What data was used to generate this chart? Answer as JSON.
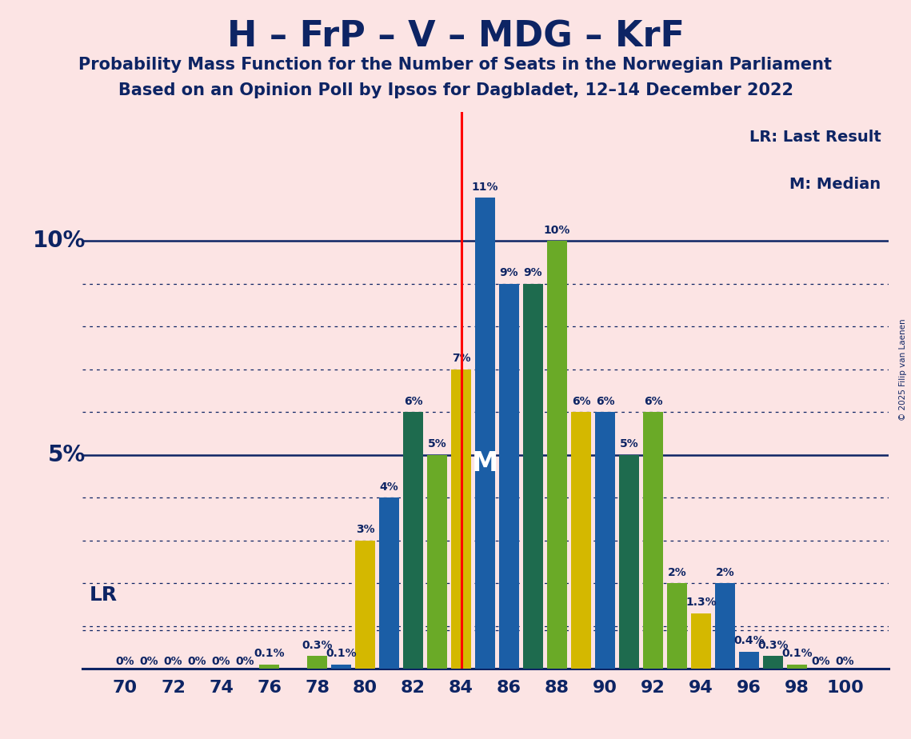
{
  "title": "H – FrP – V – MDG – KrF",
  "subtitle1": "Probability Mass Function for the Number of Seats in the Norwegian Parliament",
  "subtitle2": "Based on an Opinion Poll by Ipsos for Dagbladet, 12–14 December 2022",
  "copyright": "© 2025 Filip van Laenen",
  "background_color": "#fce4e4",
  "title_color": "#0d2464",
  "seats": [
    70,
    71,
    72,
    73,
    74,
    75,
    76,
    77,
    78,
    79,
    80,
    81,
    82,
    83,
    84,
    85,
    86,
    87,
    88,
    89,
    90,
    91,
    92,
    93,
    94,
    95,
    96,
    97,
    98,
    99,
    100
  ],
  "values": [
    0.0,
    0.0,
    0.0,
    0.0,
    0.0,
    0.0,
    0.1,
    0.0,
    0.3,
    0.1,
    3.0,
    4.0,
    6.0,
    5.0,
    7.0,
    11.0,
    9.0,
    9.0,
    10.0,
    6.0,
    6.0,
    5.0,
    6.0,
    2.0,
    1.3,
    2.0,
    0.4,
    0.3,
    0.1,
    0.0,
    0.0
  ],
  "bar_colors": [
    "#1b5ea6",
    "#1b5ea6",
    "#1b5ea6",
    "#1b5ea6",
    "#1b5ea6",
    "#1b5ea6",
    "#6aaa27",
    "#1b5ea6",
    "#6aaa27",
    "#1b5ea6",
    "#d4b800",
    "#1b5ea6",
    "#1e6b4e",
    "#6aaa27",
    "#d4b800",
    "#1b5ea6",
    "#1b5ea6",
    "#1e6b4e",
    "#6aaa27",
    "#d4b800",
    "#1b5ea6",
    "#1e6b4e",
    "#6aaa27",
    "#6aaa27",
    "#d4b800",
    "#1b5ea6",
    "#1b5ea6",
    "#1e6b4e",
    "#6aaa27",
    "#1b5ea6",
    "#1b5ea6"
  ],
  "bar_labels": [
    "0%",
    "0%",
    "0%",
    "0%",
    "0%",
    "0%",
    "0.1%",
    "",
    "0.3%",
    "0.1%",
    "3%",
    "4%",
    "6%",
    "5%",
    "7%",
    "11%",
    "9%",
    "9%",
    "10%",
    "6%",
    "6%",
    "5%",
    "6%",
    "2%",
    "1.3%",
    "2%",
    "0.4%",
    "0.3%",
    "0.1%",
    "0%",
    "0%"
  ],
  "lr_seat": 84,
  "median_seat": 85,
  "lr_level": 0.9,
  "ylim_max": 13.0,
  "yticks_solid": [
    5.0,
    10.0
  ],
  "yticks_dotted": [
    1.0,
    2.0,
    3.0,
    4.0,
    6.0,
    7.0,
    8.0,
    9.0
  ],
  "bar_width": 0.82,
  "title_fontsize": 32,
  "subtitle_fontsize": 15,
  "tick_fontsize": 16,
  "ylabel_fontsize": 20,
  "bar_label_fontsize": 10,
  "lr_fontsize": 18,
  "median_fontsize": 24,
  "legend_fontsize": 14,
  "copyright_fontsize": 7.5
}
